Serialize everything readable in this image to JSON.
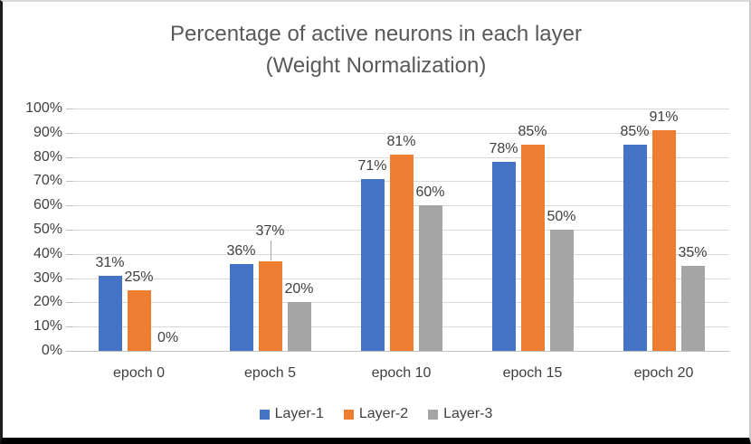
{
  "chart_data": {
    "type": "bar",
    "title_line1": "Percentage of active neurons in each layer",
    "title_line2": "(Weight Normalization)",
    "categories": [
      "epoch 0",
      "epoch 5",
      "epoch 10",
      "epoch 15",
      "epoch 20"
    ],
    "series": [
      {
        "name": "Layer-1",
        "color": "#4472C4",
        "values": [
          31,
          36,
          71,
          78,
          85
        ],
        "labels": [
          "31%",
          "36%",
          "71%",
          "78%",
          "85%"
        ]
      },
      {
        "name": "Layer-2",
        "color": "#ED7D31",
        "values": [
          25,
          37,
          81,
          85,
          91
        ],
        "labels": [
          "25%",
          "37%",
          "81%",
          "85%",
          "91%"
        ]
      },
      {
        "name": "Layer-3",
        "color": "#A5A5A5",
        "values": [
          0,
          20,
          60,
          50,
          35
        ],
        "labels": [
          "0%",
          "20%",
          "60%",
          "50%",
          "35%"
        ]
      }
    ],
    "y_axis": {
      "min": 0,
      "max": 100,
      "step": 10,
      "tick_labels": [
        "0%",
        "10%",
        "20%",
        "30%",
        "40%",
        "50%",
        "60%",
        "70%",
        "80%",
        "90%",
        "100%"
      ]
    },
    "grid": true,
    "legend_position": "bottom",
    "palette": {
      "gridline": "#D9D9D9",
      "axis_line": "#BFBFBF",
      "title_color": "#595959",
      "text_color": "#404040",
      "leader_line": "#A6A6A6",
      "frame_bottom": "#000000"
    }
  }
}
